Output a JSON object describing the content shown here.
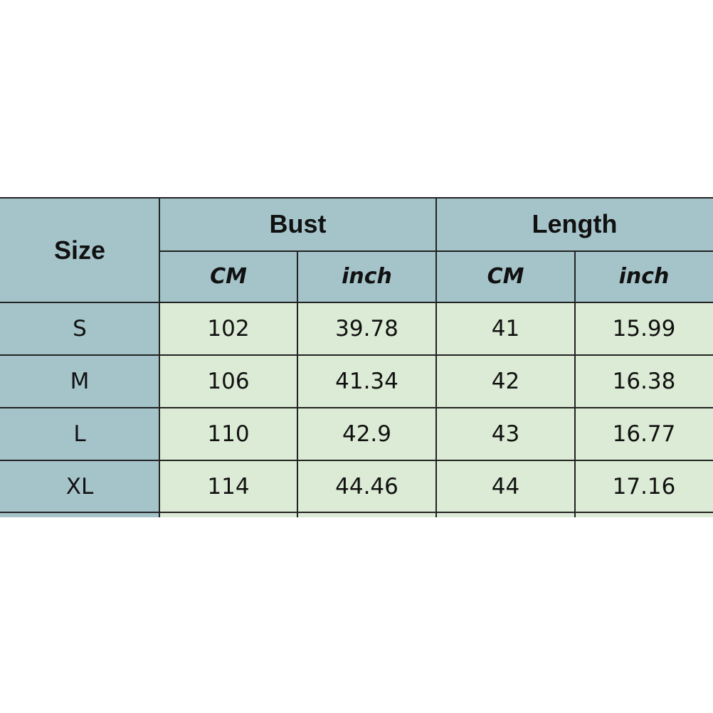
{
  "table": {
    "headers": {
      "size": "Size",
      "bust": "Bust",
      "length": "Length",
      "bust_cm": "CM",
      "bust_inch": "inch",
      "length_cm": "CM",
      "length_inch": "inch"
    },
    "rows": [
      {
        "size": "S",
        "bust_cm": "102",
        "bust_inch": "39.78",
        "length_cm": "41",
        "length_inch": "15.99"
      },
      {
        "size": "M",
        "bust_cm": "106",
        "bust_inch": "41.34",
        "length_cm": "42",
        "length_inch": "16.38"
      },
      {
        "size": "L",
        "bust_cm": "110",
        "bust_inch": "42.9",
        "length_cm": "43",
        "length_inch": "16.77"
      },
      {
        "size": "XL",
        "bust_cm": "114",
        "bust_inch": "44.46",
        "length_cm": "44",
        "length_inch": "17.16"
      }
    ]
  },
  "colors": {
    "header": "#a5c4ca",
    "data": "#dcebd5"
  }
}
